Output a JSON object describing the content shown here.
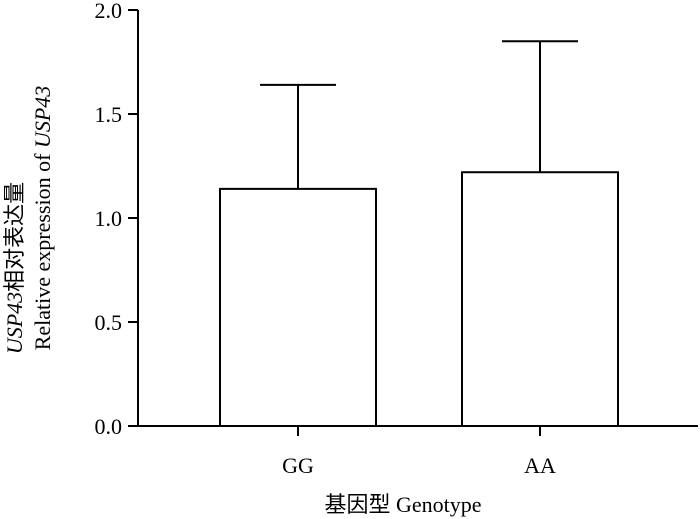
{
  "chart_data": {
    "type": "bar",
    "categories": [
      "GG",
      "AA"
    ],
    "values": [
      1.14,
      1.22
    ],
    "error_upper": [
      1.64,
      1.85
    ],
    "ylim": [
      0,
      2.0
    ],
    "yticks": [
      "0.0",
      "0.5",
      "1.0",
      "1.5",
      "2.0"
    ],
    "ytick_values": [
      0,
      0.5,
      1.0,
      1.5,
      2.0
    ],
    "xlabel": "基因型  Genotype",
    "ylabel_line1_gene": "USP43",
    "ylabel_line1_text": "相对表达量",
    "ylabel_line2_text": "Relative expression of ",
    "ylabel_line2_gene": "USP43",
    "grid": false,
    "bar_fill": "#ffffff",
    "bar_stroke": "#000000"
  }
}
